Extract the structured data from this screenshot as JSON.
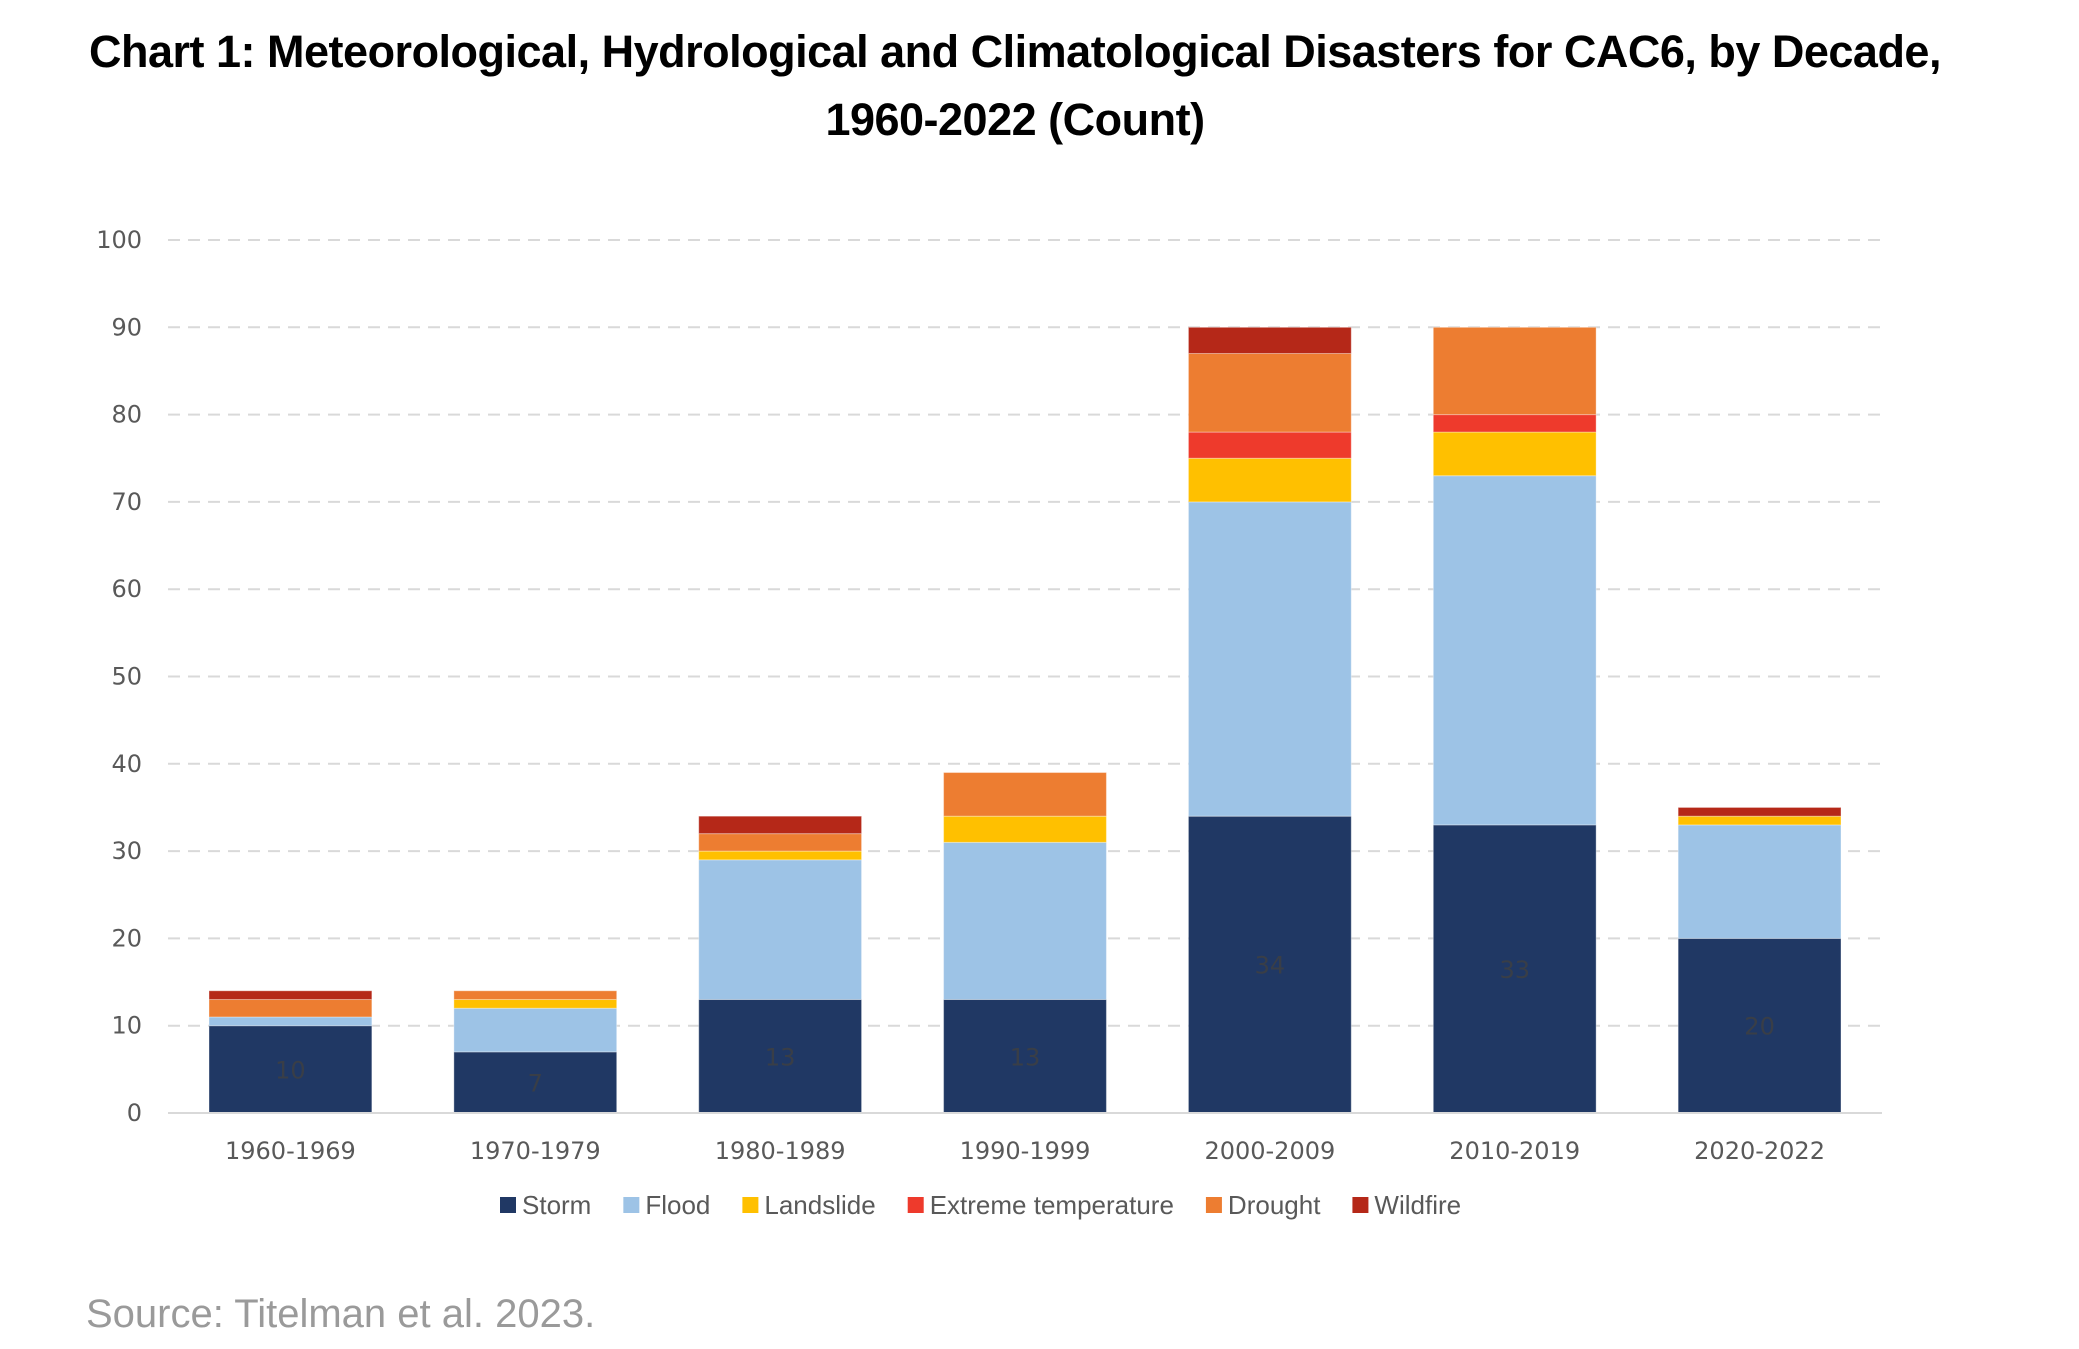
{
  "chart_data": {
    "type": "bar",
    "stacked": true,
    "title": "Chart 1: Meteorological, Hydrological and Climatological Disasters for CAC6, by Decade, 1960-2022 (Count)",
    "title_lines": [
      "Chart 1: Meteorological, Hydrological and Climatological Disasters for CAC6, by Decade,",
      "1960-2022 (Count)"
    ],
    "xlabel": "",
    "ylabel": "",
    "ylim": [
      0,
      100
    ],
    "yticks": [
      0,
      10,
      20,
      30,
      40,
      50,
      60,
      70,
      80,
      90,
      100
    ],
    "grid": true,
    "legend_position": "bottom",
    "categories": [
      "1960-1969",
      "1970-1979",
      "1980-1989",
      "1990-1999",
      "2000-2009",
      "2010-2019",
      "2020-2022"
    ],
    "series": [
      {
        "name": "Storm",
        "color": "#203864",
        "values": [
          10,
          7,
          13,
          13,
          34,
          33,
          20
        ],
        "data_labels": true
      },
      {
        "name": "Flood",
        "color": "#9DC3E6",
        "values": [
          1,
          5,
          16,
          18,
          36,
          40,
          13
        ]
      },
      {
        "name": "Landslide",
        "color": "#FFC000",
        "values": [
          0,
          1,
          1,
          3,
          5,
          5,
          1
        ]
      },
      {
        "name": "Extreme temperature",
        "color": "#EE3A2C",
        "values": [
          0,
          0,
          0,
          0,
          3,
          2,
          0
        ]
      },
      {
        "name": "Drought",
        "color": "#ED7D31",
        "values": [
          2,
          1,
          2,
          5,
          9,
          10,
          0
        ]
      },
      {
        "name": "Wildfire",
        "color": "#B52818",
        "values": [
          1,
          0,
          2,
          0,
          3,
          0,
          1
        ]
      }
    ],
    "source": "Source: Titelman et al. 2023."
  }
}
